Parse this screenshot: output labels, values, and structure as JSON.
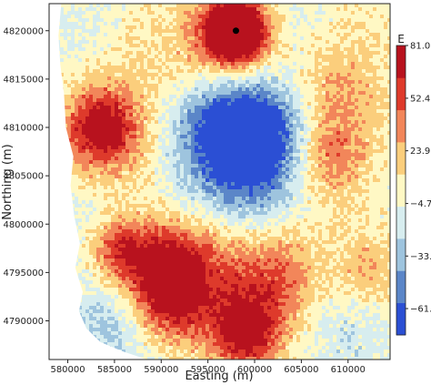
{
  "chart_data": {
    "type": "heatmap",
    "title": "",
    "xlabel": "Easting (m)",
    "ylabel": "Northing (m)",
    "xlim": [
      578000,
      614500
    ],
    "ylim": [
      4786000,
      4822800
    ],
    "xticks": [
      580000,
      585000,
      590000,
      595000,
      600000,
      605000,
      610000
    ],
    "yticks": [
      4790000,
      4795000,
      4800000,
      4805000,
      4810000,
      4815000,
      4820000
    ],
    "colorbar": {
      "title": "E",
      "range": [
        -76,
        81
      ],
      "ticks": [
        81.0,
        52.4,
        23.9,
        -4.7,
        -33.2,
        -61.7
      ],
      "tick_labels": [
        "81.0",
        "52.4",
        "23.9",
        "−4.7",
        "−33.2",
        "−61.7"
      ],
      "colors": [
        "#2b4fd4",
        "#5b86c8",
        "#9ec4de",
        "#d7edef",
        "#fff8c4",
        "#fbce7c",
        "#f2865a",
        "#de3a2b",
        "#b8121e"
      ]
    },
    "grid": false,
    "legend": "colorbar-right",
    "features": [
      {
        "x": 598000,
        "y": 4819900,
        "v": 130,
        "r": 2000
      },
      {
        "x": 597500,
        "y": 4818500,
        "v": 50,
        "r": 4200
      },
      {
        "x": 583500,
        "y": 4810000,
        "v": 62,
        "r": 2400
      },
      {
        "x": 584500,
        "y": 4808000,
        "v": 30,
        "r": 4500
      },
      {
        "x": 586500,
        "y": 4815500,
        "v": 14,
        "r": 5000
      },
      {
        "x": 598500,
        "y": 4806500,
        "v": -68,
        "r": 5500
      },
      {
        "x": 601500,
        "y": 4810500,
        "v": -44,
        "r": 4500
      },
      {
        "x": 596000,
        "y": 4811000,
        "v": -26,
        "r": 3500
      },
      {
        "x": 607500,
        "y": 4807000,
        "v": 58,
        "r": 3200
      },
      {
        "x": 609000,
        "y": 4813000,
        "v": 32,
        "r": 3500
      },
      {
        "x": 604500,
        "y": 4814500,
        "v": 12,
        "r": 3000
      },
      {
        "x": 583000,
        "y": 4800000,
        "v": -18,
        "r": 4000
      },
      {
        "x": 594000,
        "y": 4800500,
        "v": 15,
        "r": 5000
      },
      {
        "x": 590500,
        "y": 4795500,
        "v": 62,
        "r": 3200
      },
      {
        "x": 585500,
        "y": 4797500,
        "v": 58,
        "r": 2400
      },
      {
        "x": 591000,
        "y": 4791500,
        "v": 52,
        "r": 3000
      },
      {
        "x": 599000,
        "y": 4788500,
        "v": 75,
        "r": 2500
      },
      {
        "x": 602000,
        "y": 4793500,
        "v": 42,
        "r": 3500
      },
      {
        "x": 596500,
        "y": 4795000,
        "v": 28,
        "r": 4500
      },
      {
        "x": 605000,
        "y": 4799500,
        "v": 14,
        "r": 3500
      },
      {
        "x": 612000,
        "y": 4795000,
        "v": 32,
        "r": 3000
      },
      {
        "x": 610000,
        "y": 4789500,
        "v": -18,
        "r": 3500
      },
      {
        "x": 608500,
        "y": 4794000,
        "v": -6,
        "r": 3000
      },
      {
        "x": 585000,
        "y": 4789500,
        "v": -28,
        "r": 3500
      },
      {
        "x": 581000,
        "y": 4820000,
        "v": -12,
        "r": 3500
      },
      {
        "x": 611000,
        "y": 4820000,
        "v": 8,
        "r": 4000
      },
      {
        "x": 603500,
        "y": 4820500,
        "v": -12,
        "r": 3000
      }
    ],
    "point_marker": {
      "x": 598000,
      "y": 4820000,
      "color": "#000000"
    }
  }
}
